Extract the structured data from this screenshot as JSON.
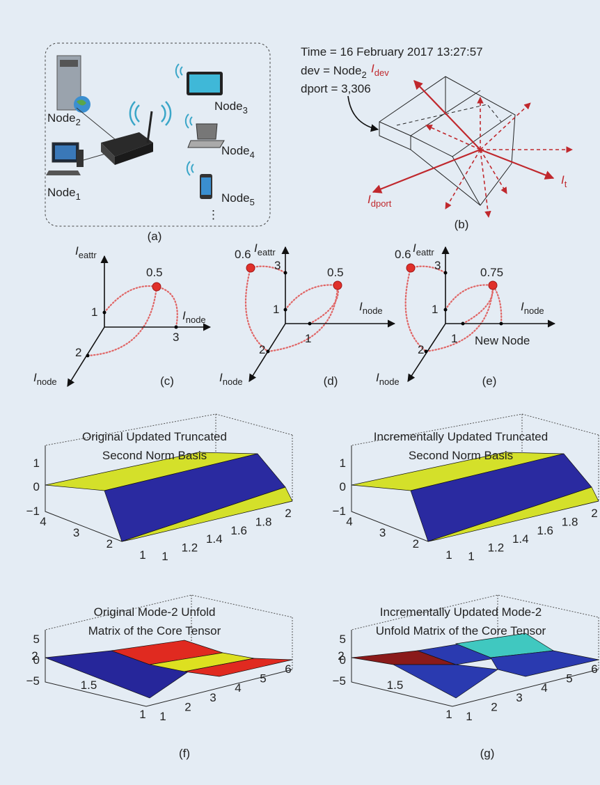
{
  "panel_a": {
    "nodes": [
      {
        "base": "Node",
        "sub": "2"
      },
      {
        "base": "Node",
        "sub": "1"
      },
      {
        "base": "Node",
        "sub": "3"
      },
      {
        "base": "Node",
        "sub": "4"
      },
      {
        "base": "Node",
        "sub": "5"
      }
    ],
    "more": "⋮",
    "caption": "(a)"
  },
  "panel_b": {
    "lines": [
      {
        "base": "Time = 16 February 2017 13:27:57"
      },
      {
        "base": "dev = Node",
        "sub": "2"
      },
      {
        "base": "dport = 3,306"
      }
    ],
    "axes": [
      {
        "base": "I",
        "sub": "dev"
      },
      {
        "base": "I",
        "sub": "dport"
      },
      {
        "base": "I",
        "sub": "t"
      }
    ],
    "caption": "(b)"
  },
  "panel_c": {
    "axes": [
      {
        "base": "I",
        "sub": "eattr"
      },
      {
        "base": "I",
        "sub": "node"
      },
      {
        "base": "I",
        "sub": "node"
      }
    ],
    "ticks": [
      "1",
      "3",
      "2"
    ],
    "points": [
      "0.5"
    ],
    "caption": "(c)"
  },
  "panel_d": {
    "axes": [
      {
        "base": "I",
        "sub": "eattr"
      },
      {
        "base": "I",
        "sub": "node"
      },
      {
        "base": "I",
        "sub": "node"
      }
    ],
    "ticks": [
      "3",
      "1",
      "1",
      "2"
    ],
    "points": [
      "0.6",
      "0.5"
    ],
    "caption": "(d)"
  },
  "panel_e": {
    "axes": [
      {
        "base": "I",
        "sub": "eattr"
      },
      {
        "base": "I",
        "sub": "node"
      },
      {
        "base": "I",
        "sub": "node"
      }
    ],
    "ticks": [
      "3",
      "1",
      "1",
      "2",
      "New Node"
    ],
    "points": [
      "0.6",
      "0.75"
    ],
    "caption": "(e)"
  },
  "plots": [
    {
      "title": [
        "Original Updated Truncated",
        "Second Norm Basis"
      ],
      "zticks": [
        "1",
        "0",
        "−1"
      ],
      "yticks": [
        "4",
        "3",
        "2",
        "1"
      ],
      "xticks": [
        "1",
        "1.2",
        "1.4",
        "1.6",
        "1.8",
        "2"
      ]
    },
    {
      "title": [
        "Incrementally Updated Truncated",
        "Second Norm Basis"
      ],
      "zticks": [
        "1",
        "0",
        "−1"
      ],
      "yticks": [
        "4",
        "3",
        "2",
        "1"
      ],
      "xticks": [
        "1",
        "1.2",
        "1.4",
        "1.6",
        "1.8",
        "2"
      ]
    },
    {
      "title": [
        "Original Mode-2 Unfold",
        "Matrix of the Core Tensor"
      ],
      "zticks": [
        "5",
        "0",
        "−5"
      ],
      "yticks": [
        "2",
        "1.5",
        "1"
      ],
      "xticks": [
        "1",
        "2",
        "3",
        "4",
        "5",
        "6"
      ]
    },
    {
      "title": [
        "Incrementally Updated Mode-2",
        "Unfold Matrix of the Core Tensor"
      ],
      "zticks": [
        "5",
        "0",
        "−5"
      ],
      "yticks": [
        "2",
        "1.5",
        "1"
      ],
      "xticks": [
        "1",
        "2",
        "3",
        "4",
        "5",
        "6"
      ]
    }
  ],
  "plot_captions": [
    "(f)",
    "(g)"
  ]
}
